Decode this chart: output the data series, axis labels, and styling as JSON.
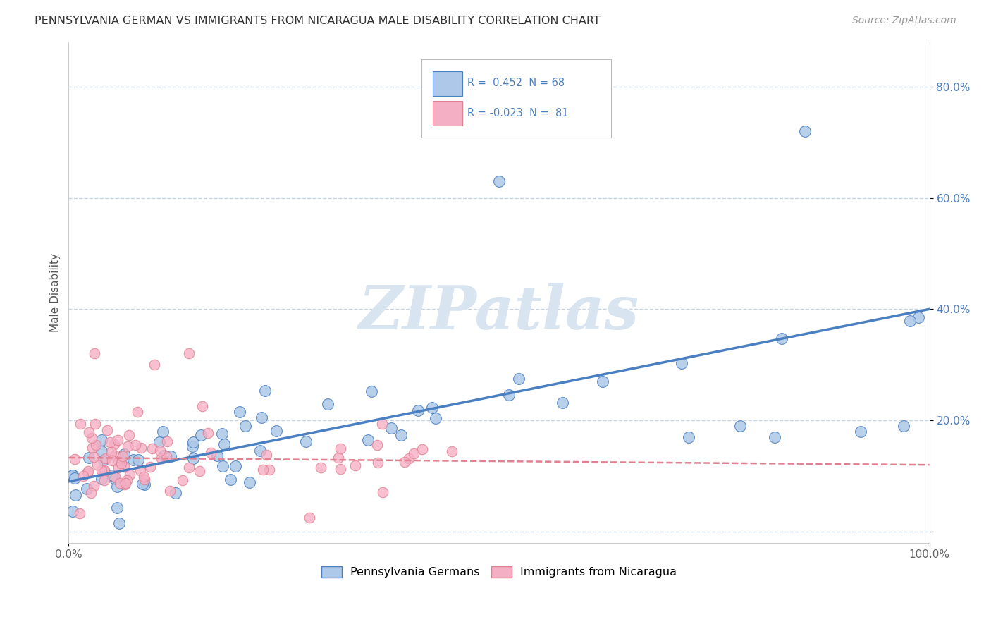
{
  "title": "PENNSYLVANIA GERMAN VS IMMIGRANTS FROM NICARAGUA MALE DISABILITY CORRELATION CHART",
  "source": "Source: ZipAtlas.com",
  "ylabel": "Male Disability",
  "xlim": [
    0.0,
    1.0
  ],
  "ylim": [
    -0.02,
    0.88
  ],
  "yticks": [
    0.0,
    0.2,
    0.4,
    0.6,
    0.8
  ],
  "ytick_labels": [
    "",
    "20.0%",
    "40.0%",
    "60.0%",
    "80.0%"
  ],
  "xticks": [
    0.0,
    1.0
  ],
  "xtick_labels": [
    "0.0%",
    "100.0%"
  ],
  "color_blue": "#adc8e8",
  "color_pink": "#f5afc5",
  "line_color_blue": "#4a7fc1",
  "line_color_pink": "#e08090",
  "watermark_color": "#d8e4f0",
  "background_color": "#ffffff",
  "grid_color": "#c5d5e5",
  "blue_line_start": 0.09,
  "blue_line_end": 0.4,
  "pink_line_start": 0.133,
  "pink_line_end": 0.12
}
